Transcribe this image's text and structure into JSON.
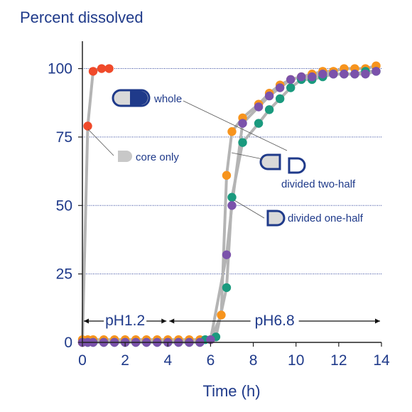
{
  "chart_data": {
    "type": "scatter",
    "title": "Percent dissolved",
    "xlabel": "Time (h)",
    "ylabel": "Percent dissolved",
    "xlim": [
      0,
      14
    ],
    "ylim": [
      0,
      110
    ],
    "xticks": [
      0,
      2,
      4,
      6,
      8,
      10,
      12,
      14
    ],
    "yticks": [
      0,
      25,
      50,
      75,
      100
    ],
    "grid": "horizontal dotted",
    "phases": [
      {
        "label": "pH1.2",
        "start": 0,
        "end": 4
      },
      {
        "label": "pH6.8",
        "start": 4,
        "end": 14
      }
    ],
    "annotations": {
      "core": "core only",
      "whole": "whole",
      "two_half": "divided two-half",
      "one_half": "divided one-half"
    },
    "series": [
      {
        "key": "core",
        "color": "#f04a2a",
        "x": [
          0,
          0.25,
          0.5,
          0.9,
          1.25
        ],
        "y": [
          0,
          79,
          99,
          100,
          100
        ]
      },
      {
        "key": "whole",
        "color": "#f7941d",
        "x": [
          0,
          0.25,
          0.5,
          1,
          1.5,
          2,
          2.5,
          3,
          3.5,
          4,
          4.5,
          5,
          5.5,
          6,
          6.5,
          6.75,
          7,
          7.5,
          8.25,
          8.75,
          9.25,
          9.75,
          10.25,
          10.75,
          11.25,
          11.75,
          12.25,
          12.75,
          13.25,
          13.75
        ],
        "y": [
          1,
          1,
          1,
          1,
          1,
          1,
          1,
          1,
          1,
          1,
          1,
          1,
          1,
          1,
          10,
          61,
          77,
          82,
          87,
          91,
          94,
          96,
          97,
          98,
          99,
          99,
          100,
          100,
          100,
          101
        ]
      },
      {
        "key": "two_half",
        "color": "#1a9a7e",
        "x": [
          0,
          0.25,
          0.5,
          1,
          1.5,
          2,
          2.5,
          3,
          3.5,
          4,
          4.5,
          5,
          5.5,
          5.75,
          6.25,
          6.75,
          7,
          7.5,
          8.25,
          8.75,
          9.25,
          9.75,
          10.25,
          10.75,
          11.25,
          11.75,
          12.25,
          12.75,
          13.25,
          13.75
        ],
        "y": [
          0,
          0,
          0,
          0,
          0,
          0,
          0,
          0,
          0,
          0,
          0,
          0,
          0,
          1,
          2,
          20,
          53,
          73,
          80,
          85,
          89,
          93,
          96,
          96,
          97,
          98,
          98,
          98,
          99,
          99
        ]
      },
      {
        "key": "one_half",
        "color": "#7b52ab",
        "x": [
          0,
          0.25,
          0.5,
          1,
          1.5,
          2,
          2.5,
          3,
          3.5,
          4,
          4.5,
          5,
          5.5,
          6,
          6.75,
          7,
          7.5,
          8.25,
          8.75,
          9.25,
          9.75,
          10.25,
          10.75,
          11.25,
          11.75,
          12.25,
          12.75,
          13.25,
          13.75
        ],
        "y": [
          0,
          0,
          0,
          0,
          0,
          0,
          0,
          0,
          0,
          0,
          0,
          0,
          0,
          1,
          32,
          50,
          80,
          86,
          90,
          93,
          96,
          97,
          97,
          98,
          98,
          98,
          98,
          98,
          99
        ]
      }
    ]
  }
}
